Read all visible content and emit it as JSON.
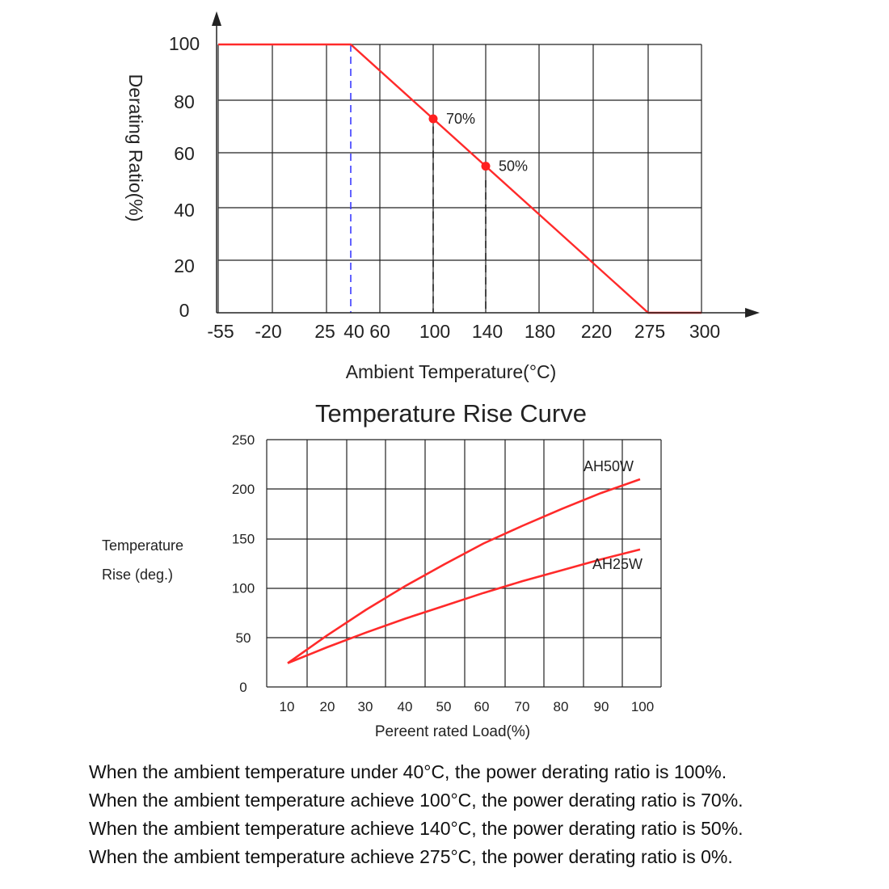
{
  "chart_data": [
    {
      "type": "line",
      "title": "",
      "xlabel": "Ambient Temperature(°C)",
      "ylabel": "Derating Ratio(%)",
      "x_tick_labels": [
        "-55",
        "-20",
        "25",
        "40",
        "60",
        "100",
        "140",
        "180",
        "220",
        "275",
        "300"
      ],
      "y_tick_labels": [
        "0",
        "20",
        "40",
        "60",
        "80",
        "100"
      ],
      "ylim": [
        0,
        100
      ],
      "grid": true,
      "series": [
        {
          "x": [
            -55,
            40,
            275,
            300
          ],
          "y": [
            100,
            100,
            0,
            0
          ],
          "color": "#ff2a2a"
        }
      ],
      "markers": [
        {
          "x": 100,
          "y": 70,
          "label": "70%"
        },
        {
          "x": 140,
          "y": 50,
          "label": "50%"
        }
      ],
      "reference_lines": [
        {
          "x": 40,
          "style": "dashed",
          "color": "#3b3bff"
        },
        {
          "x": 100,
          "style": "dashed",
          "color": "#222222"
        },
        {
          "x": 140,
          "style": "dashed",
          "color": "#222222"
        }
      ]
    },
    {
      "type": "line",
      "title": "Temperature Rise Curve",
      "xlabel": "Pereent rated Load(%)",
      "ylabel_lines": [
        "Temperature",
        "Rise (deg.)"
      ],
      "x": [
        10,
        20,
        30,
        40,
        50,
        60,
        70,
        80,
        90,
        100
      ],
      "ylim": [
        0,
        250
      ],
      "y_ticks": [
        0,
        50,
        100,
        150,
        200,
        250
      ],
      "grid": true,
      "series": [
        {
          "name": "AH50W",
          "x": [
            10,
            20,
            30,
            40,
            50,
            60,
            70,
            80,
            90,
            100
          ],
          "y": [
            24,
            52,
            78,
            102,
            124,
            145,
            163,
            180,
            196,
            210
          ],
          "color": "#ff2a2a"
        },
        {
          "name": "AH25W",
          "x": [
            10,
            20,
            30,
            40,
            50,
            60,
            70,
            80,
            90,
            100
          ],
          "y": [
            24,
            40,
            55,
            69,
            82,
            95,
            107,
            118,
            129,
            139
          ],
          "color": "#ff2a2a"
        }
      ]
    }
  ],
  "notes": [
    "When the ambient temperature under 40°C, the power derating ratio is 100%.",
    "When the ambient temperature achieve 100°C, the power derating ratio is 70%.",
    "When the ambient temperature achieve 140°C, the power derating ratio is 50%.",
    "When the ambient temperature achieve 275°C, the power derating ratio is 0%."
  ]
}
